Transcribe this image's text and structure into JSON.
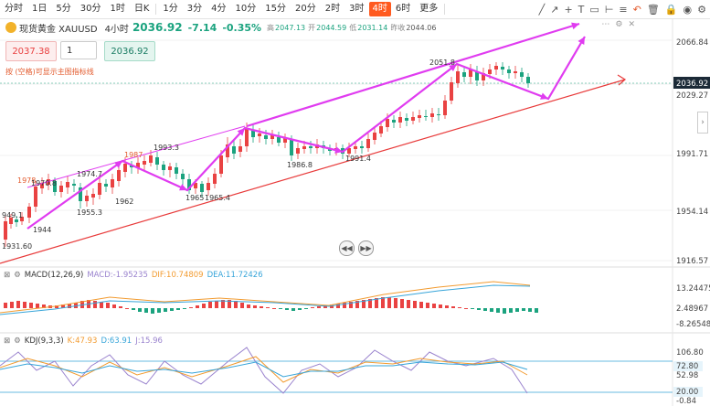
{
  "toolbar": {
    "timeframes": [
      "分时",
      "1日",
      "5分",
      "30分",
      "1时",
      "日K",
      "1分",
      "3分",
      "4分",
      "10分",
      "15分",
      "20分",
      "2时",
      "3时",
      "4时",
      "6时",
      "更多"
    ],
    "active": "4时",
    "tool_icons": [
      "line-tool-icon",
      "ray-tool-icon",
      "cross-tool-icon",
      "text-tool-icon",
      "rect-tool-icon",
      "measure-tool-icon",
      "fib-tool-icon",
      "undo-icon",
      "delete-icon",
      "lock-icon",
      "eye-icon",
      "settings-icon"
    ]
  },
  "quote": {
    "symbol": "现货黄金 XAUUSD",
    "timeframe": "4小时",
    "price": "2036.92",
    "change": "-7.14",
    "change_pct": "-0.35%",
    "high_label": "高",
    "high": "2047.13",
    "open_label": "开",
    "open": "2044.59",
    "low_label": "低",
    "low": "2031.14",
    "prev_label": "昨收",
    "prev": "2044.06"
  },
  "order": {
    "sell": "2037.38",
    "qty": "1",
    "buy": "2036.92"
  },
  "hint": "按 (空格)可显示主图指标线",
  "price_axis": [
    "2066.84",
    "2036.92",
    "2029.27",
    "1991.71",
    "1954.14",
    "1916.57"
  ],
  "price_labels": [
    {
      "t": "1978",
      "c": "#e35b2e"
    },
    {
      "t": "1970.8",
      "c": "#333"
    },
    {
      "t": "949.1",
      "c": "#333"
    },
    {
      "t": "1944",
      "c": "#333"
    },
    {
      "t": "1931.60",
      "c": "#333"
    },
    {
      "t": "1974.7",
      "c": "#333"
    },
    {
      "t": "1955.3",
      "c": "#333"
    },
    {
      "t": "1962",
      "c": "#333"
    },
    {
      "t": "1987",
      "c": "#e35b2e"
    },
    {
      "t": "1993.3",
      "c": "#333"
    },
    {
      "t": "1965",
      "c": "#333"
    },
    {
      "t": "1965.4",
      "c": "#333"
    },
    {
      "t": "1986.8",
      "c": "#333"
    },
    {
      "t": "1991.4",
      "c": "#333"
    },
    {
      "t": "2051.8",
      "c": "#333"
    }
  ],
  "macd": {
    "label": "MACD(12,26,9)",
    "macd_label": "MACD:",
    "macd_value": "-1.95235",
    "dif_label": "DIF:",
    "dif_value": "10.74809",
    "dea_label": "DEA:",
    "dea_value": "11.72426",
    "axis": [
      "13.24475",
      "2.48967",
      "-8.26548"
    ]
  },
  "kdj": {
    "label": "KDJ(9,3,3)",
    "k_label": "K:",
    "k_value": "47.93",
    "d_label": "D:",
    "d_value": "63.91",
    "j_label": "J:",
    "j_value": "15.96",
    "axis": [
      "106.80",
      "72.80",
      "52.98",
      "20.00",
      "-0.84"
    ]
  },
  "colors": {
    "up": "#e94242",
    "down": "#1ba37f",
    "annot": "#e03cf0",
    "support": "#e83a3a"
  }
}
